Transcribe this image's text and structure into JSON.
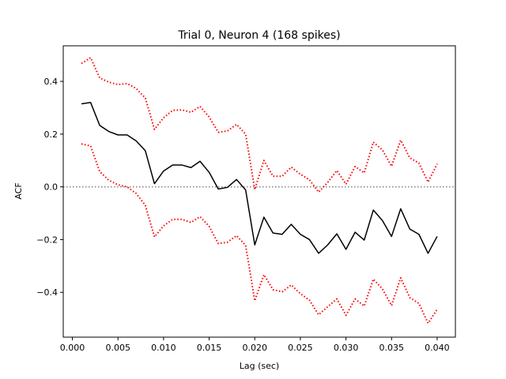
{
  "chart_data": {
    "type": "line",
    "title": "Trial 0, Neuron 4 (168 spikes)",
    "xlabel": "Lag (sec)",
    "ylabel": "ACF",
    "xlim": [
      -0.001,
      0.042
    ],
    "ylim": [
      -0.57,
      0.535
    ],
    "xticks": [
      0.0,
      0.005,
      0.01,
      0.015,
      0.02,
      0.025,
      0.03,
      0.035,
      0.04
    ],
    "xtick_labels": [
      "0.000",
      "0.005",
      "0.010",
      "0.015",
      "0.020",
      "0.025",
      "0.030",
      "0.035",
      "0.040"
    ],
    "yticks": [
      -0.4,
      -0.2,
      0.0,
      0.2,
      0.4
    ],
    "ytick_labels": [
      "−0.4",
      "−0.2",
      "0.0",
      "0.2",
      "0.4"
    ],
    "grid": false,
    "x": [
      0.001,
      0.002,
      0.003,
      0.004,
      0.005,
      0.006,
      0.007,
      0.008,
      0.009,
      0.01,
      0.011,
      0.012,
      0.013,
      0.014,
      0.015,
      0.016,
      0.017,
      0.018,
      0.019,
      0.02,
      0.021,
      0.022,
      0.023,
      0.024,
      0.025,
      0.026,
      0.027,
      0.028,
      0.029,
      0.03,
      0.031,
      0.032,
      0.033,
      0.034,
      0.035,
      0.036,
      0.037,
      0.038,
      0.039,
      0.04
    ],
    "series": [
      {
        "role": "acf",
        "color": "#000000",
        "style": "solid",
        "values": [
          0.315,
          0.32,
          0.233,
          0.21,
          0.197,
          0.197,
          0.174,
          0.137,
          0.012,
          0.06,
          0.083,
          0.083,
          0.073,
          0.097,
          0.055,
          -0.008,
          -0.002,
          0.028,
          -0.012,
          -0.22,
          -0.115,
          -0.175,
          -0.18,
          -0.142,
          -0.18,
          -0.2,
          -0.252,
          -0.22,
          -0.178,
          -0.237,
          -0.172,
          -0.202,
          -0.088,
          -0.128,
          -0.188,
          -0.083,
          -0.16,
          -0.18,
          -0.252,
          -0.188
        ]
      },
      {
        "role": "upper-bound",
        "color": "#ff0000",
        "style": "dotted",
        "values": [
          0.468,
          0.49,
          0.413,
          0.397,
          0.388,
          0.392,
          0.373,
          0.337,
          0.218,
          0.262,
          0.29,
          0.292,
          0.283,
          0.305,
          0.265,
          0.207,
          0.212,
          0.237,
          0.2,
          -0.01,
          0.1,
          0.04,
          0.04,
          0.075,
          0.048,
          0.027,
          -0.02,
          0.017,
          0.062,
          0.01,
          0.077,
          0.053,
          0.17,
          0.14,
          0.078,
          0.177,
          0.11,
          0.09,
          0.018,
          0.087
        ]
      },
      {
        "role": "lower-bound",
        "color": "#ff0000",
        "style": "dotted",
        "values": [
          0.163,
          0.155,
          0.058,
          0.025,
          0.008,
          0.0,
          -0.025,
          -0.07,
          -0.19,
          -0.148,
          -0.123,
          -0.123,
          -0.135,
          -0.113,
          -0.15,
          -0.215,
          -0.21,
          -0.185,
          -0.222,
          -0.432,
          -0.333,
          -0.39,
          -0.398,
          -0.372,
          -0.405,
          -0.43,
          -0.485,
          -0.455,
          -0.425,
          -0.487,
          -0.425,
          -0.452,
          -0.35,
          -0.387,
          -0.45,
          -0.345,
          -0.42,
          -0.442,
          -0.517,
          -0.465
        ]
      }
    ],
    "reference_line": {
      "y": 0.0,
      "color": "#808080",
      "style": "dotted"
    }
  }
}
